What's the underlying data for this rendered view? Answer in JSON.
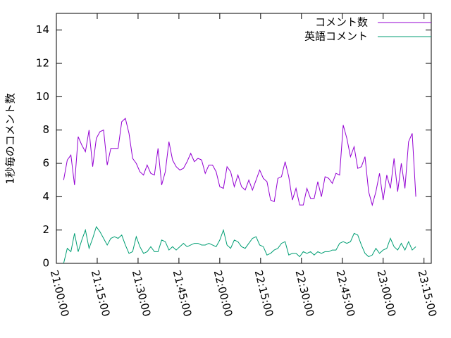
{
  "chart_data": {
    "type": "line",
    "y_label": "1秒毎のコメント数",
    "x": [
      "21:02:40",
      "21:04:00",
      "21:05:20",
      "21:06:40",
      "21:08:00",
      "21:09:20",
      "21:10:40",
      "21:12:00",
      "21:13:20",
      "21:14:40",
      "21:16:00",
      "21:17:20",
      "21:18:40",
      "21:20:00",
      "21:21:20",
      "21:22:40",
      "21:24:00",
      "21:25:20",
      "21:26:40",
      "21:28:00",
      "21:29:20",
      "21:30:40",
      "21:32:00",
      "21:33:20",
      "21:34:40",
      "21:36:00",
      "21:37:20",
      "21:38:40",
      "21:40:00",
      "21:41:20",
      "21:42:40",
      "21:44:00",
      "21:45:20",
      "21:46:40",
      "21:48:00",
      "21:49:20",
      "21:50:40",
      "21:52:00",
      "21:53:20",
      "21:54:40",
      "21:56:00",
      "21:57:20",
      "21:58:40",
      "22:00:00",
      "22:01:20",
      "22:02:40",
      "22:04:00",
      "22:05:20",
      "22:06:40",
      "22:08:00",
      "22:09:20",
      "22:10:40",
      "22:12:00",
      "22:13:20",
      "22:14:40",
      "22:16:00",
      "22:17:20",
      "22:18:40",
      "22:20:00",
      "22:21:20",
      "22:22:40",
      "22:24:00",
      "22:25:20",
      "22:26:40",
      "22:28:00",
      "22:29:20",
      "22:30:40",
      "22:32:00",
      "22:33:20",
      "22:34:40",
      "22:36:00",
      "22:37:20",
      "22:38:40",
      "22:40:00",
      "22:41:20",
      "22:42:40",
      "22:44:00",
      "22:45:20",
      "22:46:40",
      "22:48:00",
      "22:49:20",
      "22:50:40",
      "22:52:00",
      "22:53:20",
      "22:54:40",
      "22:56:00",
      "22:57:20",
      "22:58:40",
      "23:00:00",
      "23:01:20",
      "23:02:40",
      "23:04:00",
      "23:05:20",
      "23:06:40",
      "23:08:00",
      "23:09:20",
      "23:10:40",
      "23:12:00"
    ],
    "series": [
      {
        "name": "コメント数",
        "color": "#9400d3",
        "values": [
          5.0,
          6.2,
          6.5,
          4.7,
          7.6,
          7.1,
          6.7,
          8.0,
          5.8,
          7.5,
          7.9,
          8.0,
          5.9,
          6.9,
          6.9,
          6.9,
          8.5,
          8.7,
          7.8,
          6.3,
          6.0,
          5.5,
          5.3,
          5.9,
          5.4,
          5.3,
          6.9,
          4.7,
          5.5,
          7.3,
          6.2,
          5.8,
          5.6,
          5.7,
          6.1,
          6.6,
          6.1,
          6.3,
          6.2,
          5.4,
          5.9,
          5.9,
          5.5,
          4.6,
          4.5,
          5.8,
          5.5,
          4.6,
          5.3,
          4.6,
          4.4,
          5.0,
          4.4,
          5.0,
          5.6,
          5.1,
          4.9,
          3.8,
          3.7,
          5.1,
          5.2,
          6.1,
          5.2,
          3.8,
          4.5,
          3.5,
          3.5,
          4.5,
          3.9,
          3.9,
          4.9,
          4.0,
          5.2,
          5.1,
          4.8,
          5.4,
          5.3,
          8.3,
          7.5,
          6.4,
          7.0,
          5.7,
          5.8,
          6.4,
          4.3,
          3.5,
          4.3,
          5.4,
          3.8,
          5.3,
          4.5,
          6.3,
          4.3,
          6.0,
          4.5,
          7.3,
          7.8,
          4.0
        ]
      },
      {
        "name": "英語コメント",
        "color": "#009e73",
        "values": [
          0,
          0.9,
          0.7,
          1.8,
          0.7,
          1.4,
          2.0,
          0.9,
          1.5,
          2.2,
          1.9,
          1.5,
          1.1,
          1.5,
          1.6,
          1.5,
          1.7,
          1.1,
          0.6,
          0.7,
          1.6,
          1.0,
          0.6,
          0.7,
          1.0,
          0.7,
          0.7,
          1.4,
          1.3,
          0.8,
          1.0,
          0.8,
          1.0,
          1.2,
          1.0,
          1.1,
          1.2,
          1.2,
          1.1,
          1.1,
          1.2,
          1.1,
          1.0,
          1.4,
          2.0,
          1.1,
          0.9,
          1.4,
          1.3,
          1.0,
          0.9,
          1.2,
          1.5,
          1.6,
          1.1,
          1.0,
          0.5,
          0.6,
          0.8,
          0.9,
          1.2,
          1.3,
          0.5,
          0.6,
          0.6,
          0.4,
          0.7,
          0.6,
          0.7,
          0.5,
          0.7,
          0.6,
          0.7,
          0.7,
          0.8,
          0.8,
          1.2,
          1.3,
          1.2,
          1.3,
          1.8,
          1.7,
          1.1,
          0.6,
          0.4,
          0.5,
          0.9,
          0.6,
          0.8,
          0.9,
          1.5,
          1.0,
          0.8,
          1.2,
          0.8,
          1.3,
          0.8,
          1.0
        ]
      }
    ],
    "xlim": [
      "21:00:00",
      "23:17:40"
    ],
    "xticks": [
      "21:00:00",
      "21:15:00",
      "21:30:00",
      "21:45:00",
      "22:00:00",
      "22:15:00",
      "22:30:00",
      "22:45:00",
      "23:00:00",
      "23:15:00"
    ],
    "ylim": [
      0,
      15
    ],
    "yticks": [
      0,
      2,
      4,
      6,
      8,
      10,
      12,
      14
    ],
    "legend": "top-right"
  }
}
